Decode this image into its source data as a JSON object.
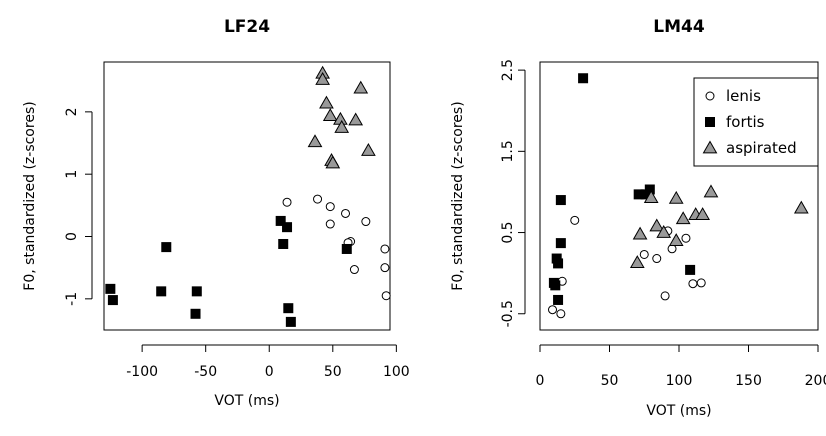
{
  "chart_data": [
    {
      "type": "scatter",
      "title": "LF24",
      "xlabel": "VOT (ms)",
      "ylabel": "F0, standardized (z-scores)",
      "xlim": [
        -130,
        95
      ],
      "ylim": [
        -1.5,
        2.8
      ],
      "xticks": [
        -100,
        -50,
        0,
        50,
        100
      ],
      "xtick_labels": [
        "-100",
        "-50",
        "0",
        "50",
        "100"
      ],
      "yticks": [
        -1,
        0,
        1,
        2
      ],
      "ytick_labels": [
        "-1",
        "0",
        "1",
        "2"
      ],
      "legend": null,
      "series": [
        {
          "name": "lenis",
          "marker": "circle",
          "fill": "#ffffff",
          "points": [
            [
              14,
              0.55
            ],
            [
              38,
              0.6
            ],
            [
              48,
              0.48
            ],
            [
              60,
              0.37
            ],
            [
              76,
              0.24
            ],
            [
              48,
              0.2
            ],
            [
              64,
              -0.08
            ],
            [
              62,
              -0.1
            ],
            [
              67,
              -0.53
            ],
            [
              91,
              -0.2
            ],
            [
              91,
              -0.5
            ],
            [
              92,
              -0.95
            ]
          ]
        },
        {
          "name": "fortis",
          "marker": "square",
          "fill": "#000000",
          "points": [
            [
              -125,
              -0.84
            ],
            [
              -123,
              -1.02
            ],
            [
              -81,
              -0.17
            ],
            [
              -85,
              -0.88
            ],
            [
              -57,
              -0.88
            ],
            [
              -58,
              -1.24
            ],
            [
              9,
              0.25
            ],
            [
              14,
              0.15
            ],
            [
              11,
              -0.12
            ],
            [
              15,
              -1.15
            ],
            [
              17,
              -1.37
            ],
            [
              61,
              -0.2
            ]
          ]
        },
        {
          "name": "aspirated",
          "marker": "triangle",
          "fill": "#999999",
          "points": [
            [
              42,
              2.62
            ],
            [
              42,
              2.52
            ],
            [
              72,
              2.38
            ],
            [
              45,
              2.14
            ],
            [
              48,
              1.94
            ],
            [
              56,
              1.88
            ],
            [
              68,
              1.87
            ],
            [
              57,
              1.75
            ],
            [
              36,
              1.52
            ],
            [
              49,
              1.22
            ],
            [
              50,
              1.18
            ],
            [
              78,
              1.38
            ]
          ]
        }
      ]
    },
    {
      "type": "scatter",
      "title": "LM44",
      "xlabel": "VOT (ms)",
      "ylabel": "F0, standardized (z-scores)",
      "xlim": [
        0,
        200
      ],
      "ylim": [
        -0.7,
        2.6
      ],
      "xticks": [
        0,
        50,
        100,
        150,
        200
      ],
      "xtick_labels": [
        "0",
        "50",
        "100",
        "150",
        "200"
      ],
      "yticks": [
        -0.5,
        0.5,
        1.5,
        2.5
      ],
      "ytick_labels": [
        "-0.5",
        "0.5",
        "1.5",
        "2.5"
      ],
      "legend": {
        "position": "top-right",
        "entries": [
          {
            "label": "lenis",
            "marker": "circle",
            "fill": "#ffffff"
          },
          {
            "label": "fortis",
            "marker": "square",
            "fill": "#000000"
          },
          {
            "label": "aspirated",
            "marker": "triangle",
            "fill": "#999999"
          }
        ]
      },
      "series": [
        {
          "name": "lenis",
          "marker": "circle",
          "fill": "#ffffff",
          "points": [
            [
              25,
              0.65
            ],
            [
              16,
              -0.1
            ],
            [
              75,
              0.23
            ],
            [
              84,
              0.18
            ],
            [
              92,
              0.52
            ],
            [
              95,
              0.3
            ],
            [
              105,
              0.43
            ],
            [
              110,
              -0.13
            ],
            [
              116,
              -0.12
            ],
            [
              90,
              -0.28
            ],
            [
              9,
              -0.45
            ],
            [
              15,
              -0.5
            ]
          ]
        },
        {
          "name": "fortis",
          "marker": "square",
          "fill": "#000000",
          "points": [
            [
              31,
              2.4
            ],
            [
              71,
              0.97
            ],
            [
              76,
              0.97
            ],
            [
              79,
              1.03
            ],
            [
              15,
              0.9
            ],
            [
              15,
              0.37
            ],
            [
              12,
              0.18
            ],
            [
              13,
              0.12
            ],
            [
              10,
              -0.12
            ],
            [
              11,
              -0.15
            ],
            [
              13,
              -0.33
            ],
            [
              108,
              0.04
            ]
          ]
        },
        {
          "name": "aspirated",
          "marker": "triangle",
          "fill": "#999999",
          "points": [
            [
              80,
              0.93
            ],
            [
              98,
              0.92
            ],
            [
              123,
              1.0
            ],
            [
              188,
              0.8
            ],
            [
              72,
              0.48
            ],
            [
              84,
              0.58
            ],
            [
              89,
              0.5
            ],
            [
              103,
              0.67
            ],
            [
              112,
              0.72
            ],
            [
              117,
              0.72
            ],
            [
              98,
              0.4
            ],
            [
              70,
              0.13
            ]
          ]
        }
      ]
    }
  ]
}
